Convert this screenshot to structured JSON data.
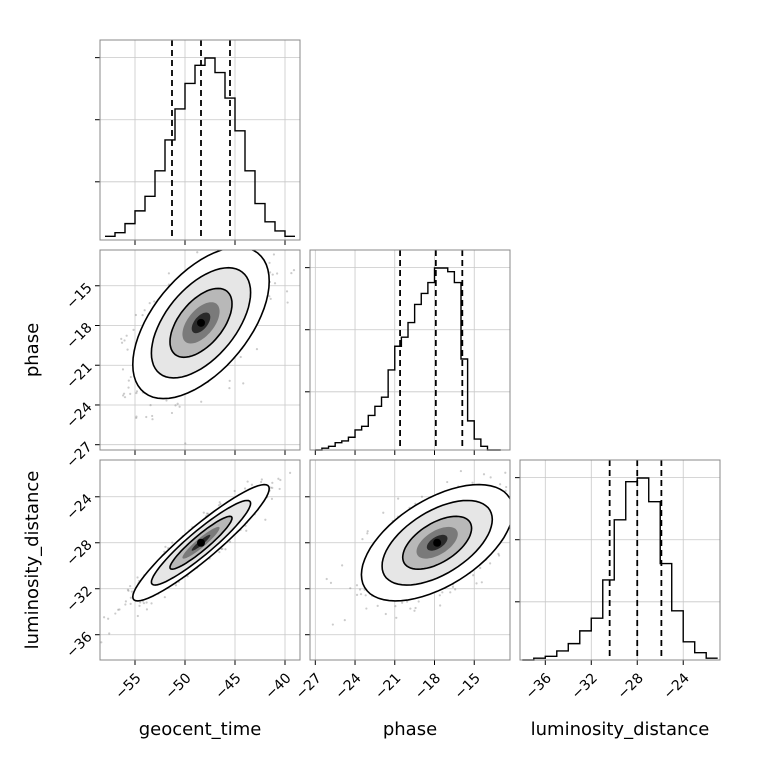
{
  "chart_data": {
    "type": "corner",
    "parameters": [
      "geocent_time",
      "phase",
      "luminosity_distance"
    ],
    "axis_labels": {
      "geocent_time": "geocent_time",
      "phase": "phase",
      "luminosity_distance": "luminosity_distance"
    },
    "ranges": {
      "geocent_time": [
        -58.5,
        -38.5
      ],
      "phase": [
        -27.4,
        -12.3
      ],
      "luminosity_distance": [
        -38.2,
        -20.8
      ]
    },
    "ticks": {
      "geocent_time": [
        -55,
        -50,
        -45,
        -40
      ],
      "phase": [
        -27,
        -24,
        -21,
        -18,
        -15
      ],
      "luminosity_distance": [
        -36,
        -32,
        -28,
        -24
      ]
    },
    "quantiles": {
      "geocent_time": [
        -51.3,
        -48.4,
        -45.5
      ],
      "phase": [
        -20.6,
        -17.9,
        -15.9
      ],
      "luminosity_distance": [
        -30.4,
        -28.0,
        -25.9
      ]
    },
    "histograms": {
      "geocent_time": {
        "bin_edges": [
          -58,
          -57,
          -56,
          -55,
          -54,
          -53,
          -52,
          -51,
          -50,
          -49,
          -48,
          -47,
          -46,
          -45,
          -44,
          -43,
          -42,
          -41,
          -40,
          -39
        ],
        "counts": [
          0.02,
          0.04,
          0.09,
          0.16,
          0.24,
          0.38,
          0.55,
          0.72,
          0.86,
          0.96,
          1.0,
          0.92,
          0.78,
          0.6,
          0.38,
          0.2,
          0.1,
          0.05,
          0.02
        ]
      },
      "phase": {
        "bin_edges": [
          -27,
          -26.5,
          -26,
          -25.5,
          -25,
          -24.5,
          -24,
          -23.5,
          -23,
          -22.5,
          -22,
          -21.5,
          -21,
          -20.5,
          -20,
          -19.5,
          -19,
          -18.5,
          -18,
          -17.5,
          -17,
          -16.5,
          -16,
          -15.5,
          -15,
          -14.5,
          -14,
          -13.5,
          -13
        ],
        "counts": [
          0.0,
          0.01,
          0.02,
          0.04,
          0.05,
          0.07,
          0.11,
          0.13,
          0.19,
          0.24,
          0.29,
          0.44,
          0.57,
          0.62,
          0.7,
          0.8,
          0.86,
          0.92,
          1.0,
          1.0,
          0.98,
          0.92,
          0.5,
          0.16,
          0.06,
          0.02,
          0.0,
          0.0
        ]
      },
      "luminosity_distance": {
        "bin_edges": [
          -38,
          -37,
          -36,
          -35,
          -34,
          -33,
          -32,
          -31,
          -30,
          -29,
          -28,
          -27,
          -26,
          -25,
          -24,
          -23,
          -22,
          -21
        ],
        "counts": [
          0.0,
          0.01,
          0.02,
          0.05,
          0.09,
          0.16,
          0.23,
          0.44,
          0.77,
          0.98,
          1.0,
          0.87,
          0.53,
          0.27,
          0.1,
          0.04,
          0.01
        ]
      }
    },
    "pairs": [
      {
        "x": "geocent_time",
        "y": "phase",
        "center": [
          -48.4,
          -17.8
        ],
        "sigma": [
          3.1,
          2.6
        ],
        "correlation": 0.55,
        "contour_levels": [
          1.0,
          1.6,
          2.2
        ]
      },
      {
        "x": "geocent_time",
        "y": "luminosity_distance",
        "center": [
          -48.4,
          -28.0
        ],
        "sigma": [
          3.1,
          2.3
        ],
        "correlation": 0.93,
        "contour_levels": [
          1.0,
          1.6,
          2.2
        ]
      },
      {
        "x": "phase",
        "y": "luminosity_distance",
        "center": [
          -17.8,
          -28.0
        ],
        "sigma": [
          2.6,
          2.3
        ],
        "correlation": 0.55,
        "contour_levels": [
          1.0,
          1.6,
          2.2
        ]
      }
    ],
    "grid": true,
    "quantile_line_style": "dashed"
  }
}
